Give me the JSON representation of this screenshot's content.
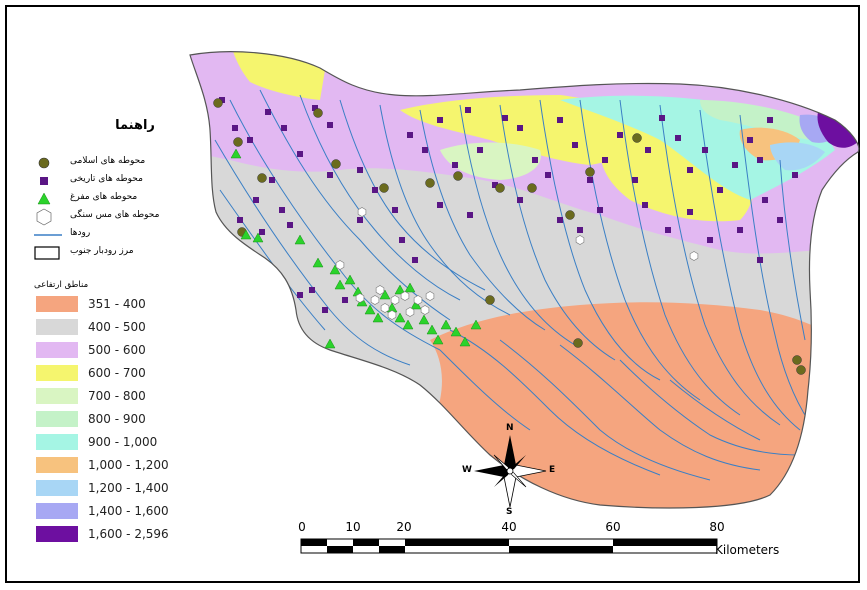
{
  "legend": {
    "title": "راهنما",
    "symbols": [
      {
        "label": "محوطه های اسلامی",
        "icon": "olive-circle-icon",
        "color": "#6b6b1e"
      },
      {
        "label": "محوطه های تاریخی",
        "icon": "purple-square-icon",
        "color": "#5a1685"
      },
      {
        "label": "محوطه های مفرغ",
        "icon": "green-triangle-icon",
        "color": "#2bd32b"
      },
      {
        "label": "محوطه های مس سنگی",
        "icon": "white-hexagon-icon",
        "color": "#ffffff"
      },
      {
        "label": "رودها",
        "icon": "river-line-icon",
        "color": "#3a7fc5"
      },
      {
        "label": "مرز رودبار جنوب",
        "icon": "boundary-box-icon",
        "color": "#000000"
      }
    ],
    "elevation_title": "مناطق ارتفاعی",
    "elevation_classes": [
      {
        "label": "351 - 400",
        "color": "#f5a57f"
      },
      {
        "label": "400 - 500",
        "color": "#d8d8d8"
      },
      {
        "label": "500 - 600",
        "color": "#e2b8f2"
      },
      {
        "label": "600 - 700",
        "color": "#f5f56e"
      },
      {
        "label": "700 - 800",
        "color": "#d9f5c2"
      },
      {
        "label": "800 - 900",
        "color": "#c4f2c8"
      },
      {
        "label": "900 - 1,000",
        "color": "#a5f5e4"
      },
      {
        "label": "1,000 - 1,200",
        "color": "#f7c27e"
      },
      {
        "label": "1,200 - 1,400",
        "color": "#a8d6f5"
      },
      {
        "label": "1,400 - 1,600",
        "color": "#a7a8f3"
      },
      {
        "label": "1,600 - 2,596",
        "color": "#6d0fa0"
      }
    ]
  },
  "scale": {
    "ticks": [
      "0",
      "10",
      "20",
      "40",
      "60",
      "80"
    ],
    "units": "Kilometers"
  },
  "compass": {
    "n": "N",
    "s": "S",
    "e": "E",
    "w": "W"
  }
}
